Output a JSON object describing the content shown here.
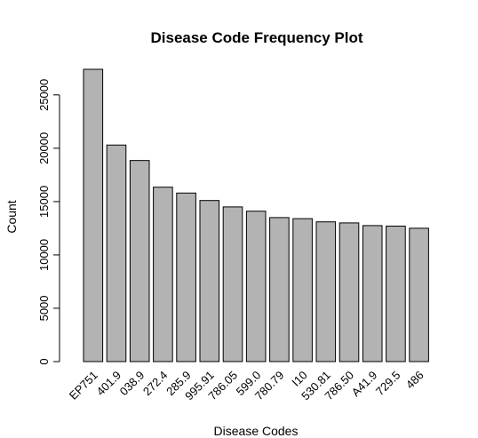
{
  "chart_data": {
    "type": "bar",
    "title": "Disease Code Frequency Plot",
    "xlabel": "Disease Codes",
    "ylabel": "Count",
    "categories": [
      "EP751",
      "401.9",
      "038.9",
      "272.4",
      "285.9",
      "995.91",
      "786.05",
      "599.0",
      "780.79",
      "I10",
      "530.81",
      "786.50",
      "A41.9",
      "729.5",
      "486"
    ],
    "values": [
      27400,
      20300,
      18850,
      16350,
      15800,
      15100,
      14500,
      14100,
      13500,
      13400,
      13100,
      13000,
      12750,
      12700,
      12500
    ],
    "ylim": [
      0,
      27400
    ],
    "yticks": [
      0,
      5000,
      10000,
      15000,
      20000,
      25000
    ],
    "bar_fill": "#b3b3b3",
    "bar_stroke": "#000000",
    "grid": false,
    "legend": "none"
  }
}
